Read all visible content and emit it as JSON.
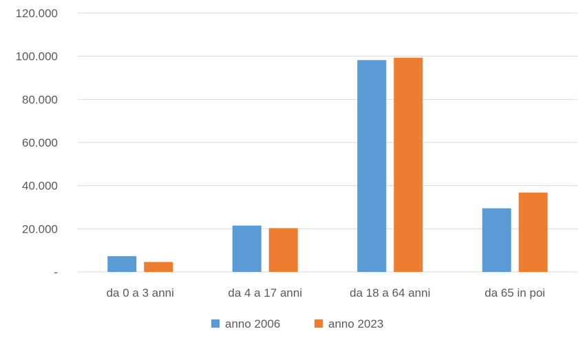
{
  "chart_data": {
    "type": "bar",
    "title": "",
    "xlabel": "",
    "ylabel": "",
    "categories": [
      "da 0 a 3 anni",
      "da 4 a 17 anni",
      "da 18 a 64 anni",
      "da 65 in poi"
    ],
    "series": [
      {
        "name": "anno 2006",
        "color": "#5B9BD5",
        "values": [
          7300,
          21500,
          98200,
          29500
        ]
      },
      {
        "name": "anno 2023",
        "color": "#ED7D31",
        "values": [
          4600,
          20300,
          99300,
          36800
        ]
      }
    ],
    "ylim": [
      0,
      120000
    ],
    "yticks": [
      0,
      20000,
      40000,
      60000,
      80000,
      100000,
      120000
    ],
    "ytick_labels": [
      "-",
      "20.000",
      "40.000",
      "60.000",
      "80.000",
      "100.000",
      "120.000"
    ],
    "grid": true,
    "legend_position": "bottom"
  }
}
